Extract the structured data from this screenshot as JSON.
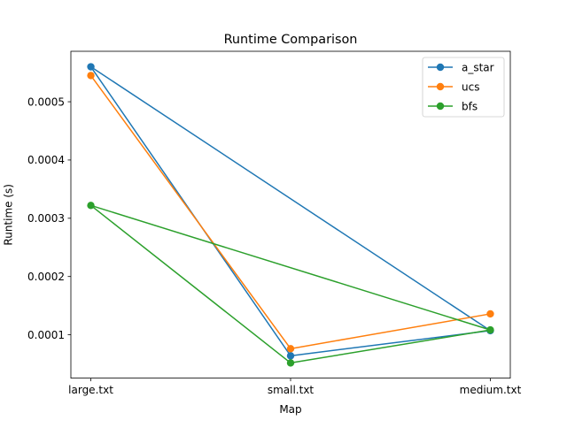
{
  "chart_data": {
    "type": "line",
    "title": "Runtime Comparison",
    "xlabel": "Map",
    "ylabel": "Runtime (s)",
    "categories": [
      "large.txt",
      "small.txt",
      "medium.txt"
    ],
    "ylim": [
      2.56e-05,
      0.0005866
    ],
    "yticks": [
      0.0001,
      0.0002,
      0.0003,
      0.0004,
      0.0005
    ],
    "ytick_labels": [
      "0.0001",
      "0.0002",
      "0.0003",
      "0.0004",
      "0.0005"
    ],
    "grid": false,
    "legend_position": "top-right",
    "series": [
      {
        "name": "a_star",
        "color": "#1f77b4",
        "values": [
          0.00056,
          6.39e-05,
          0.0001071
        ],
        "closing_segment": true
      },
      {
        "name": "ucs",
        "color": "#ff7f0e",
        "values": [
          0.000545,
          7.61e-05,
          0.0001359
        ],
        "closing_segment": false
      },
      {
        "name": "bfs",
        "color": "#2ca02c",
        "values": [
          0.000322,
          5.17e-05,
          0.0001083
        ],
        "closing_segment": true
      }
    ]
  }
}
